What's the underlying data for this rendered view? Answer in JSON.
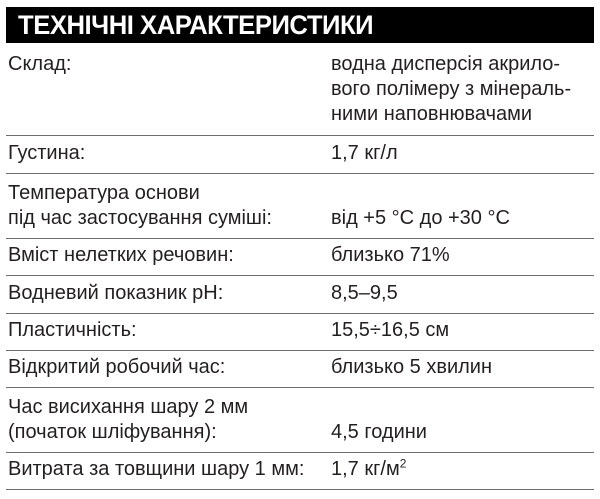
{
  "title": "ТЕХНІЧНІ ХАРАКТЕРИСТИКИ",
  "rows": [
    {
      "label": "Склад:",
      "value": "водна дисперсія акрило-\nвого полімеру з мінераль-\nними наповнювачами"
    },
    {
      "label": "Густина:",
      "value": "1,7 кг/л"
    },
    {
      "label": "Температура основи\nпід час застосування суміші:",
      "value": "від +5 °C до +30 °C"
    },
    {
      "label": "Вміст нелетких речовин:",
      "value": "близько 71%"
    },
    {
      "label": "Водневий показник pH:",
      "value": "8,5–9,5"
    },
    {
      "label": "Пластичність:",
      "value": "15,5÷16,5 см"
    },
    {
      "label": "Відкритий робочий час:",
      "value": "близько 5 хвилин"
    },
    {
      "label": "Час висихання шару 2 мм\n(початок шліфування):",
      "value": "4,5 години"
    },
    {
      "label": "Витрата за товщини шару 1 мм:",
      "value": "1,7 кг/м",
      "value_sup": "2"
    }
  ]
}
